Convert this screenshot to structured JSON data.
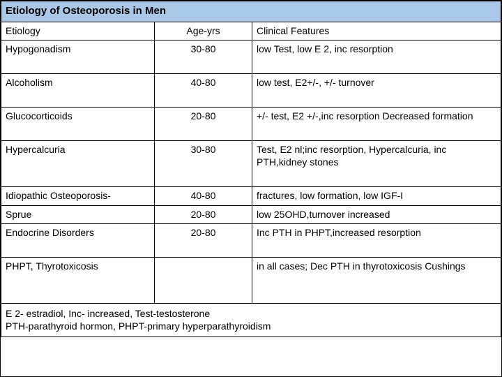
{
  "title": "Etiology of Osteoporosis in Men",
  "title_bg": "#a9c8e8",
  "headers": {
    "etiology": "Etiology",
    "age": "Age-yrs",
    "features": "Clinical Features"
  },
  "rows": [
    {
      "etiology": "Hypogonadism",
      "age": "30-80",
      "features": "low Test, low E 2, inc resorption"
    },
    {
      "etiology": "Alcoholism",
      "age": "40-80",
      "features": "low test, E2+/-, +/- turnover"
    },
    {
      "etiology": "Glucocorticoids",
      "age": "20-80",
      "features": "+/- test, E2 +/-,inc resorption Decreased formation"
    },
    {
      "etiology": "Hypercalcuria",
      "age": "30-80",
      "features": "Test, E2 nl;inc resorption, Hypercalcuria, inc PTH,kidney stones"
    },
    {
      "etiology": "Idiopathic Osteoporosis-",
      "age": "40-80",
      "features": "fractures, low formation, low IGF-I"
    },
    {
      "etiology": "Sprue",
      "age": "20-80",
      "features": "low 25OHD,turnover increased"
    },
    {
      "etiology": "Endocrine Disorders",
      "age": "20-80",
      "features": "Inc PTH in PHPT,increased resorption"
    },
    {
      "etiology": "PHPT, Thyrotoxicosis",
      "age": "",
      "features": "in all cases; Dec PTH in thyrotoxicosis Cushings"
    }
  ],
  "footer_line1": "E 2- estradiol,   Inc- increased, Test-testosterone",
  "footer_line2": "PTH-parathyroid hormon,  PHPT-primary hyperparathyroidism"
}
